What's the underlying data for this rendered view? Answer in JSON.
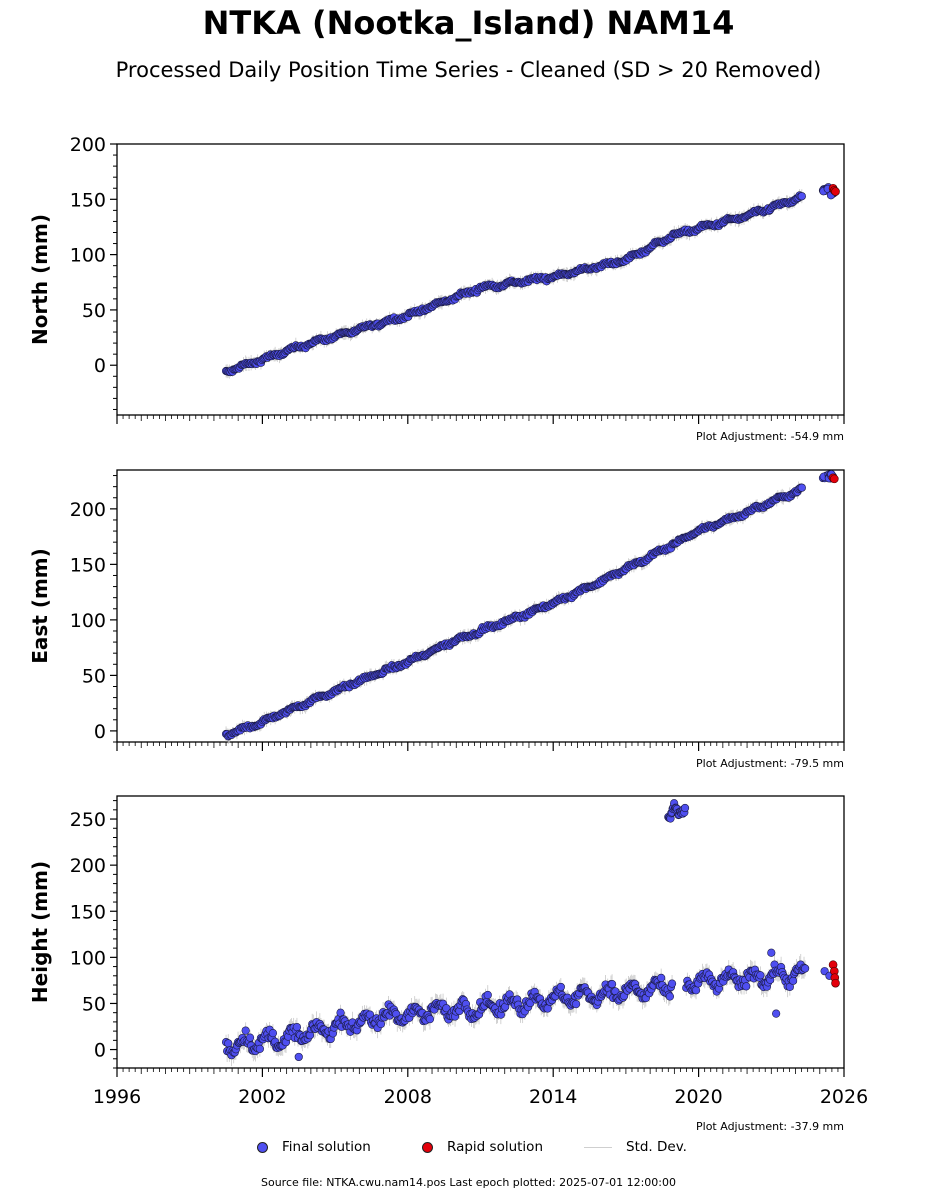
{
  "title": "NTKA (Nootka_Island) NAM14",
  "subtitle": "Processed Daily Position Time Series - Cleaned (SD > 20 Removed)",
  "source_text": "Source file: NTKA.cwu.nam14.pos  Last epoch plotted: 2025-07-01 12:00:00",
  "colors": {
    "final": "#4f4ff0",
    "rapid": "#e3000b",
    "std": "#c8c8c8"
  },
  "legend": {
    "final": "Final solution",
    "rapid": "Rapid solution",
    "std": "Std. Dev."
  },
  "chart_data": [
    {
      "type": "scatter",
      "panel": "north",
      "ylabel": "North (mm)",
      "adjustment": "Plot Adjustment: -54.9 mm",
      "xlim": [
        1996,
        2026
      ],
      "ylim": [
        -45,
        200
      ],
      "yticks": [
        0,
        50,
        100,
        150,
        200
      ],
      "xticks": [
        1996,
        2002,
        2008,
        2014,
        2020,
        2026
      ],
      "final_trend": [
        [
          2000.5,
          -6
        ],
        [
          2004,
          20
        ],
        [
          2008,
          45
        ],
        [
          2011,
          70
        ],
        [
          2014,
          80
        ],
        [
          2017,
          95
        ],
        [
          2019,
          118
        ],
        [
          2022,
          135
        ],
        [
          2024.3,
          152
        ]
      ],
      "final_extra": [
        [
          2025.2,
          158
        ],
        [
          2025.4,
          160
        ],
        [
          2025.5,
          155
        ]
      ],
      "rapid": [
        [
          2025.55,
          160
        ],
        [
          2025.6,
          158
        ],
        [
          2025.65,
          157
        ]
      ]
    },
    {
      "type": "scatter",
      "panel": "east",
      "ylabel": "East (mm)",
      "adjustment": "Plot Adjustment: -79.5 mm",
      "xlim": [
        1996,
        2026
      ],
      "ylim": [
        -10,
        235
      ],
      "yticks": [
        0,
        50,
        100,
        150,
        200
      ],
      "xticks": [
        1996,
        2002,
        2008,
        2014,
        2020,
        2026
      ],
      "final_trend": [
        [
          2000.5,
          -4
        ],
        [
          2002,
          8
        ],
        [
          2004,
          27
        ],
        [
          2006,
          45
        ],
        [
          2008,
          62
        ],
        [
          2010,
          82
        ],
        [
          2012,
          98
        ],
        [
          2014,
          115
        ],
        [
          2016,
          135
        ],
        [
          2018,
          157
        ],
        [
          2020,
          180
        ],
        [
          2022,
          197
        ],
        [
          2024.3,
          218
        ]
      ],
      "final_extra": [
        [
          2025.2,
          228
        ],
        [
          2025.4,
          229
        ],
        [
          2025.5,
          230
        ]
      ],
      "rapid": [
        [
          2025.55,
          228
        ],
        [
          2025.6,
          227
        ]
      ]
    },
    {
      "type": "scatter",
      "panel": "height",
      "ylabel": "Height (mm)",
      "adjustment": "Plot Adjustment: -37.9 mm",
      "xlim": [
        1996,
        2026
      ],
      "ylim": [
        -20,
        275
      ],
      "yticks": [
        0,
        50,
        100,
        150,
        200,
        250
      ],
      "xticks": [
        1996,
        2002,
        2008,
        2014,
        2020,
        2026
      ],
      "final_trend": [
        [
          2000.5,
          5
        ],
        [
          2003,
          12
        ],
        [
          2005,
          25
        ],
        [
          2007,
          35
        ],
        [
          2009,
          42
        ],
        [
          2011,
          45
        ],
        [
          2013,
          52
        ],
        [
          2015,
          58
        ],
        [
          2017,
          63
        ],
        [
          2018.8,
          67
        ],
        [
          2019.5,
          72
        ],
        [
          2021,
          75
        ],
        [
          2023,
          80
        ],
        [
          2024.4,
          82
        ]
      ],
      "final_gaps": [
        [
          2018.95,
          2019.45
        ]
      ],
      "final_cluster": [
        [
          2018.8,
          250
        ],
        [
          2019.0,
          265
        ],
        [
          2019.2,
          255
        ],
        [
          2019.4,
          260
        ]
      ],
      "final_outliers": [
        [
          2003.5,
          -8
        ],
        [
          2023.0,
          105
        ],
        [
          2023.2,
          39
        ],
        [
          2025.2,
          85
        ],
        [
          2025.4,
          80
        ]
      ],
      "rapid": [
        [
          2025.55,
          92
        ],
        [
          2025.6,
          85
        ],
        [
          2025.62,
          78
        ],
        [
          2025.65,
          72
        ]
      ]
    }
  ]
}
